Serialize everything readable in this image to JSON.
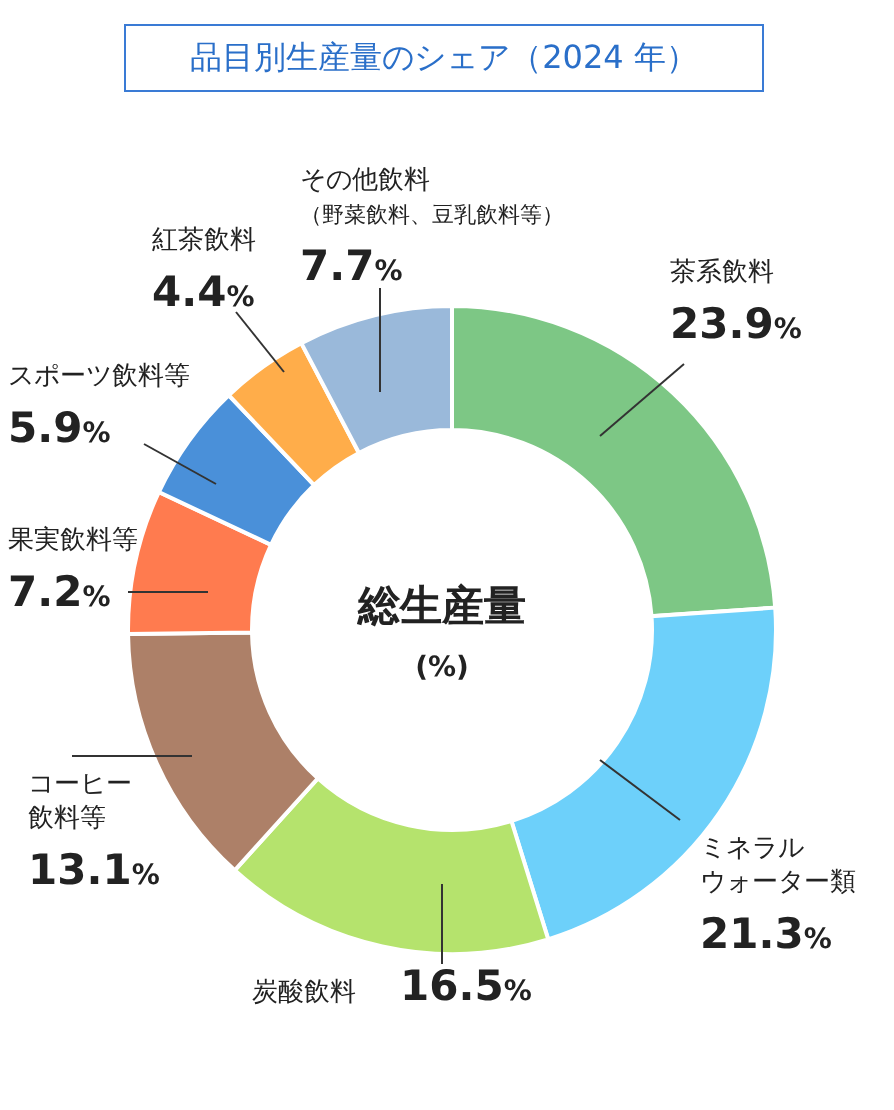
{
  "chart_data": {
    "type": "donut",
    "title": "品目別生産量のシェア（2024 年）",
    "categories": [
      "茶系飲料",
      "ミネラルウォーター類",
      "炭酸飲料",
      "コーヒー飲料等",
      "果実飲料等",
      "スポーツ飲料等",
      "紅茶飲料",
      "その他飲料（野菜飲料、豆乳飲料等）"
    ],
    "values": [
      23.9,
      21.3,
      16.5,
      13.1,
      7.2,
      5.9,
      4.4,
      7.7
    ],
    "colors": [
      "#7dc785",
      "#6dd0fa",
      "#b5e36d",
      "#ad8068",
      "#ff7b4f",
      "#4a90d9",
      "#ffad4a",
      "#9ab9da"
    ],
    "value_labels": [
      "23.9%",
      "21.3%",
      "16.5%",
      "13.1%",
      "7.2%",
      "5.9%",
      "4.4%",
      "7.7%"
    ],
    "annotations": [
      "総生産量",
      "(%)"
    ]
  }
}
